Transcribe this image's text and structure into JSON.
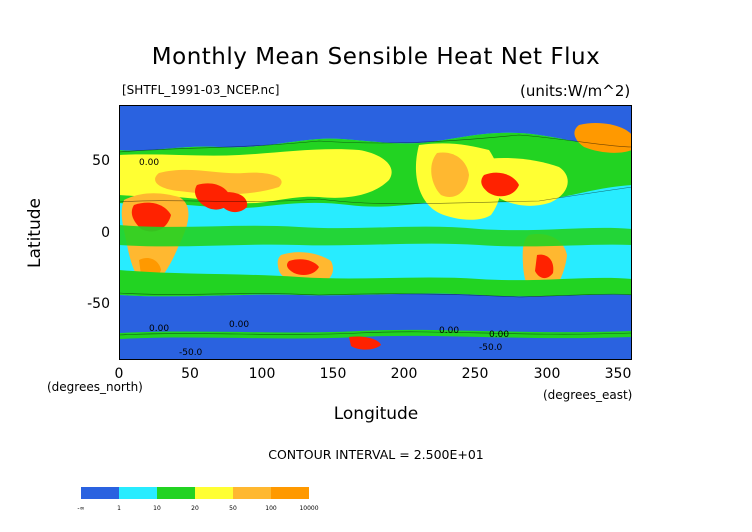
{
  "title": "Monthly Mean Sensible Heat Net Flux",
  "file_label": "[SHTFL_1991-03_NCEP.nc]",
  "units_label": "(units:W/m^2)",
  "ylabel": "Latitude",
  "xlabel": "Longitude",
  "x_unit_north": "(degrees_north)",
  "x_unit_east": "(degrees_east)",
  "contour_interval": "CONTOUR INTERVAL = 2.500E+01",
  "x_ticks": [
    "0",
    "50",
    "100",
    "150",
    "200",
    "250",
    "300",
    "350"
  ],
  "y_ticks": [
    "50",
    "0",
    "-50"
  ],
  "legend": {
    "colors": [
      "#2a62e0",
      "#28ecff",
      "#22d322",
      "#ffff33",
      "#ffb830",
      "#ff9900",
      "#ff2200"
    ],
    "labels": [
      "-∞",
      "1",
      "10",
      "20",
      "50",
      "100",
      "10000"
    ]
  },
  "contour_labels": [
    "0.00",
    "0.00",
    "-50.0",
    "0.00",
    "0.00",
    "-50.0",
    "0.00"
  ]
}
